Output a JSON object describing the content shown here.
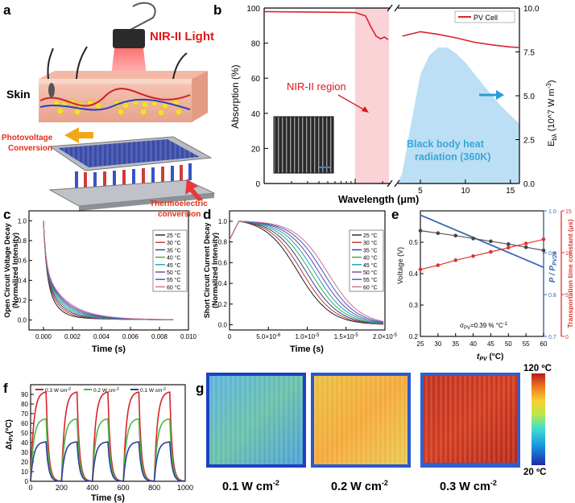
{
  "panels": {
    "a": {
      "letter": "a",
      "light_label": "NIR-II Light",
      "skin_label": "Skin",
      "photovoltage_label": [
        "Photovoltage",
        "Conversion"
      ],
      "thermoelectric_label": [
        "Thermoelectric",
        "conversion"
      ]
    },
    "g": {
      "letter": "g",
      "captions": [
        {
          "text": "0.1 W cm",
          "sup": "-2"
        },
        {
          "text": "0.2 W cm",
          "sup": "-2"
        },
        {
          "text": "0.3 W cm",
          "sup": "-2"
        }
      ],
      "colorbar_max": "120 ºC",
      "colorbar_min": "20 ºC",
      "colors": [
        "#54a8d8",
        "#f2b73c",
        "#c92c1c"
      ]
    }
  },
  "chart_data": [
    {
      "id": "b",
      "letter": "b",
      "type": "line",
      "xlabel": "Wavelength (μm)",
      "ylabel_left": "Absorption (%)",
      "ylabel_right": "E",
      "ylabel_right_sub": "bλ",
      "ylabel_right_unit": "(10^7 W m",
      "ylabel_right_unit_sup": "-3",
      "ylabel_right_close": ")",
      "ylim_left": [
        0,
        100
      ],
      "left_ticks": [
        0,
        20,
        40,
        60,
        80,
        100
      ],
      "ylim_right": [
        0,
        10
      ],
      "right_ticks": [
        "0.0",
        "2.5",
        "5.0",
        "7.5",
        "10.0"
      ],
      "x_ticks_right_segment": [
        5,
        10,
        15
      ],
      "legend": "PV Cell",
      "legend_position": "top-right",
      "region_label": "NIR-II region",
      "blackbody_label": [
        "Black body heat",
        "radiation (360K)"
      ],
      "series_pv_left": [
        [
          0.1,
          98
        ],
        [
          1.0,
          97.5
        ],
        [
          1.3,
          95.5
        ],
        [
          1.5,
          89
        ],
        [
          1.7,
          84
        ],
        [
          1.9,
          82.5
        ],
        [
          2.1,
          83.5
        ],
        [
          2.3,
          82
        ]
      ],
      "series_pv_right": [
        [
          3,
          84
        ],
        [
          5,
          86.5
        ],
        [
          7,
          85
        ],
        [
          9,
          83
        ],
        [
          11,
          80.5
        ],
        [
          13,
          79
        ],
        [
          15,
          77.8
        ],
        [
          16,
          77.5
        ]
      ],
      "blackbody_curve": [
        [
          2.5,
          0.05
        ],
        [
          3,
          0.6
        ],
        [
          4,
          3.5
        ],
        [
          5,
          6.2
        ],
        [
          6,
          7.3
        ],
        [
          7,
          7.75
        ],
        [
          8,
          7.75
        ],
        [
          9,
          7.4
        ],
        [
          10,
          6.9
        ],
        [
          12,
          5.6
        ],
        [
          14,
          4.4
        ],
        [
          16,
          3.4
        ]
      ]
    },
    {
      "id": "c",
      "letter": "c",
      "type": "line",
      "xlabel": "Time (s)",
      "ylabel": [
        "Open Circuit Voltage Decay",
        "(Normalized Intensity)"
      ],
      "xlim": [
        -0.001,
        0.01
      ],
      "x_ticks": [
        "0.000",
        "0.002",
        "0.004",
        "0.006",
        "0.008",
        "0.010"
      ],
      "ylim": [
        -0.1,
        1.1
      ],
      "y_ticks": [
        "0.0",
        "0.2",
        "0.4",
        "0.6",
        "0.8",
        "1.0"
      ],
      "legend": [
        "25 °C",
        "30 °C",
        "35 °C",
        "40 °C",
        "45 °C",
        "50 °C",
        "55 °C",
        "60 °C"
      ],
      "colors": [
        "#1f1f1f",
        "#c0392b",
        "#2c3e9e",
        "#3aa845",
        "#16a3b8",
        "#7a3fa0",
        "#2f5fc4",
        "#d46a8a"
      ]
    },
    {
      "id": "d",
      "letter": "d",
      "type": "line",
      "xlabel": "Time (s)",
      "ylabel": [
        "Short Circuit Current Decay",
        "(Normalized Intensity)"
      ],
      "xlim": [
        0,
        2e-05
      ],
      "x_ticks": [
        "0",
        "5.0×10",
        "1.0×10",
        "1.5×10",
        "2.0×10"
      ],
      "x_ticks_exp": [
        "",
        "-6",
        "-5",
        "-5",
        "-5"
      ],
      "ylim": [
        -0.05,
        1.1
      ],
      "y_ticks": [
        "0.0",
        "0.2",
        "0.4",
        "0.6",
        "0.8",
        "1.0"
      ],
      "legend": [
        "25 °C",
        "30 °C",
        "35 °C",
        "40 °C",
        "45 °C",
        "50 °C",
        "55 °C",
        "60 °C"
      ],
      "colors": [
        "#1f1f1f",
        "#c0392b",
        "#2c3e9e",
        "#3aa845",
        "#16a3b8",
        "#7a3fa0",
        "#2f5fc4",
        "#d46a8a"
      ]
    },
    {
      "id": "e",
      "letter": "e",
      "type": "line",
      "xlabel": "t",
      "xlabel_sub": "PV",
      "xlabel_unit": " (°C)",
      "ylabel_left": "Voltage (V)",
      "ylabel_mid": "P / P",
      "ylabel_mid_sub": "PV25",
      "ylabel_right": "Transportation time constant (μs)",
      "x": [
        25,
        30,
        35,
        40,
        45,
        50,
        55,
        60
      ],
      "x_ticks": [
        25,
        30,
        35,
        40,
        45,
        50,
        55,
        60
      ],
      "ylim_left": [
        0.2,
        0.6
      ],
      "left_ticks": [
        "0.2",
        "0.3",
        "0.4",
        "0.5"
      ],
      "ylim_mid": [
        0.7,
        1.0
      ],
      "mid_ticks": [
        "0.7",
        "0.8",
        "0.9",
        "1.0"
      ],
      "ylim_right": [
        0,
        15
      ],
      "right_ticks": [
        "0",
        "5",
        "10",
        "15"
      ],
      "voltage": [
        0.537,
        0.529,
        0.521,
        0.512,
        0.503,
        0.494,
        0.484,
        0.474
      ],
      "transport": [
        8.0,
        8.5,
        9.1,
        9.6,
        10.1,
        10.6,
        11.1,
        11.6
      ],
      "power_line": [
        [
          25,
          0.99
        ],
        [
          60,
          0.865
        ]
      ],
      "annotation": "σ",
      "annotation_sub": "PV",
      "annotation_rest": "=0.39 % °C",
      "annotation_sup": "-1",
      "colors": {
        "voltage": "#555555",
        "power": "#3b66b0",
        "transport": "#e0342c"
      }
    },
    {
      "id": "f",
      "letter": "f",
      "type": "line",
      "xlabel": "Time (s)",
      "ylabel": "Δt",
      "ylabel_sub": "PV",
      "ylabel_unit": "(°C)",
      "xlim": [
        0,
        1000
      ],
      "x_ticks": [
        0,
        200,
        400,
        600,
        800,
        1000
      ],
      "ylim": [
        0,
        100
      ],
      "y_ticks": [
        0,
        10,
        20,
        30,
        40,
        50,
        60,
        70,
        80,
        90
      ],
      "series": [
        {
          "name": "0.3 W cm",
          "name_sup": "-2",
          "plateau": 93,
          "color": "#d9232a"
        },
        {
          "name": "0.2 W cm",
          "name_sup": "-2",
          "plateau": 65,
          "color": "#4cb848"
        },
        {
          "name": "0.1 W cm",
          "name_sup": "-2",
          "plateau": 41,
          "color": "#2e3d99"
        }
      ],
      "cycles_on": [
        [
          0,
          100
        ],
        [
          200,
          300
        ],
        [
          400,
          500
        ],
        [
          600,
          700
        ],
        [
          800,
          900
        ]
      ]
    }
  ]
}
